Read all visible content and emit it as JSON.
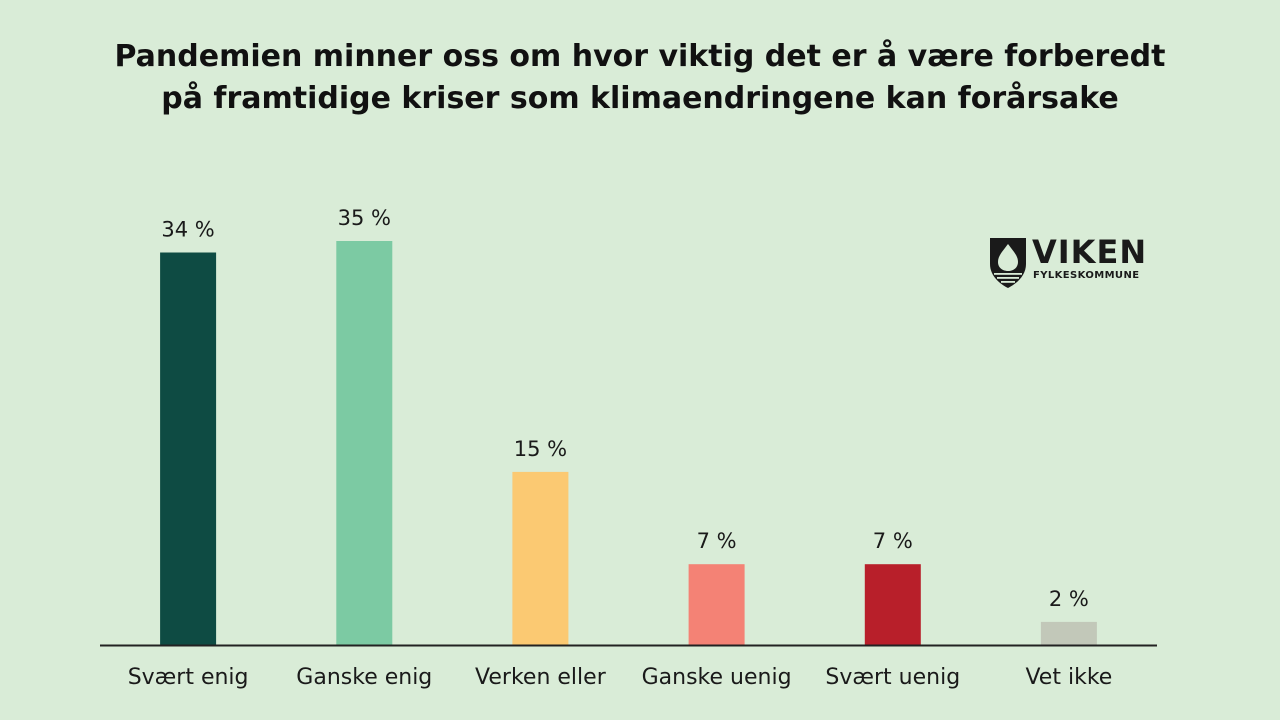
{
  "title_lines": [
    "Pandemien minner oss om hvor viktig det er å være forberedt",
    "på framtidige kriser som klimaendringene kan forårsake"
  ],
  "logo": {
    "name": "VIKEN",
    "subtitle": "FYLKESKOMMUNE"
  },
  "colors": {
    "background": "#d9ecd7",
    "axis": "#222222"
  },
  "chart_data": {
    "type": "bar",
    "title": "Pandemien minner oss om hvor viktig det er å være forberedt på framtidige kriser som klimaendringene kan forårsake",
    "xlabel": "",
    "ylabel": "",
    "ylim": [
      0,
      35
    ],
    "grid": false,
    "unit": "%",
    "categories": [
      "Svært enig",
      "Ganske enig",
      "Verken eller",
      "Ganske uenig",
      "Svært uenig",
      "Vet ikke"
    ],
    "values": [
      34,
      35,
      15,
      7,
      7,
      2
    ],
    "value_labels": [
      "34 %",
      "35 %",
      "15 %",
      "7 %",
      "7 %",
      "2 %"
    ],
    "bar_colors": [
      "#0e4b43",
      "#7ccaa3",
      "#fbc972",
      "#f48275",
      "#b81f2a",
      "#c2c8b9"
    ]
  }
}
